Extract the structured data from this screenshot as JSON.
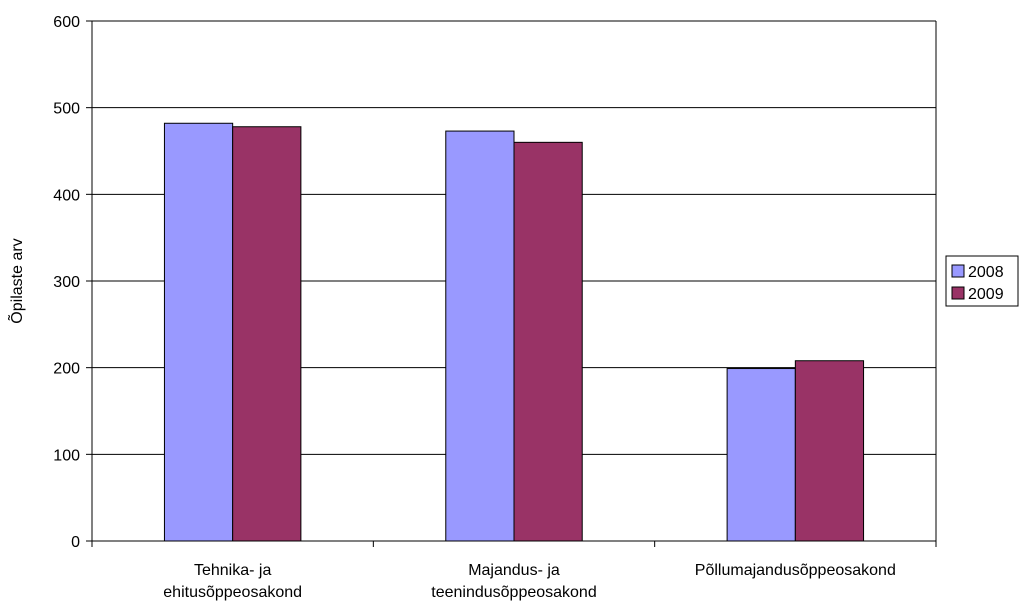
{
  "chart_data": {
    "type": "bar",
    "title": "",
    "xlabel": "",
    "ylabel": "Õpilaste arv",
    "ylim": [
      0,
      600
    ],
    "yticks": [
      0,
      100,
      200,
      300,
      400,
      500,
      600
    ],
    "grid": true,
    "legend_position": "right",
    "categories": [
      [
        "Tehnika- ja",
        "ehitusõppeosakond"
      ],
      [
        "Majandus- ja",
        "teenindusõppeosakond"
      ],
      [
        "Põllumajandusõppeosakond"
      ]
    ],
    "series": [
      {
        "name": "2008",
        "color": "#9999ff",
        "values": [
          482,
          473,
          199
        ]
      },
      {
        "name": "2009",
        "color": "#993366",
        "values": [
          478,
          460,
          208
        ]
      }
    ]
  }
}
